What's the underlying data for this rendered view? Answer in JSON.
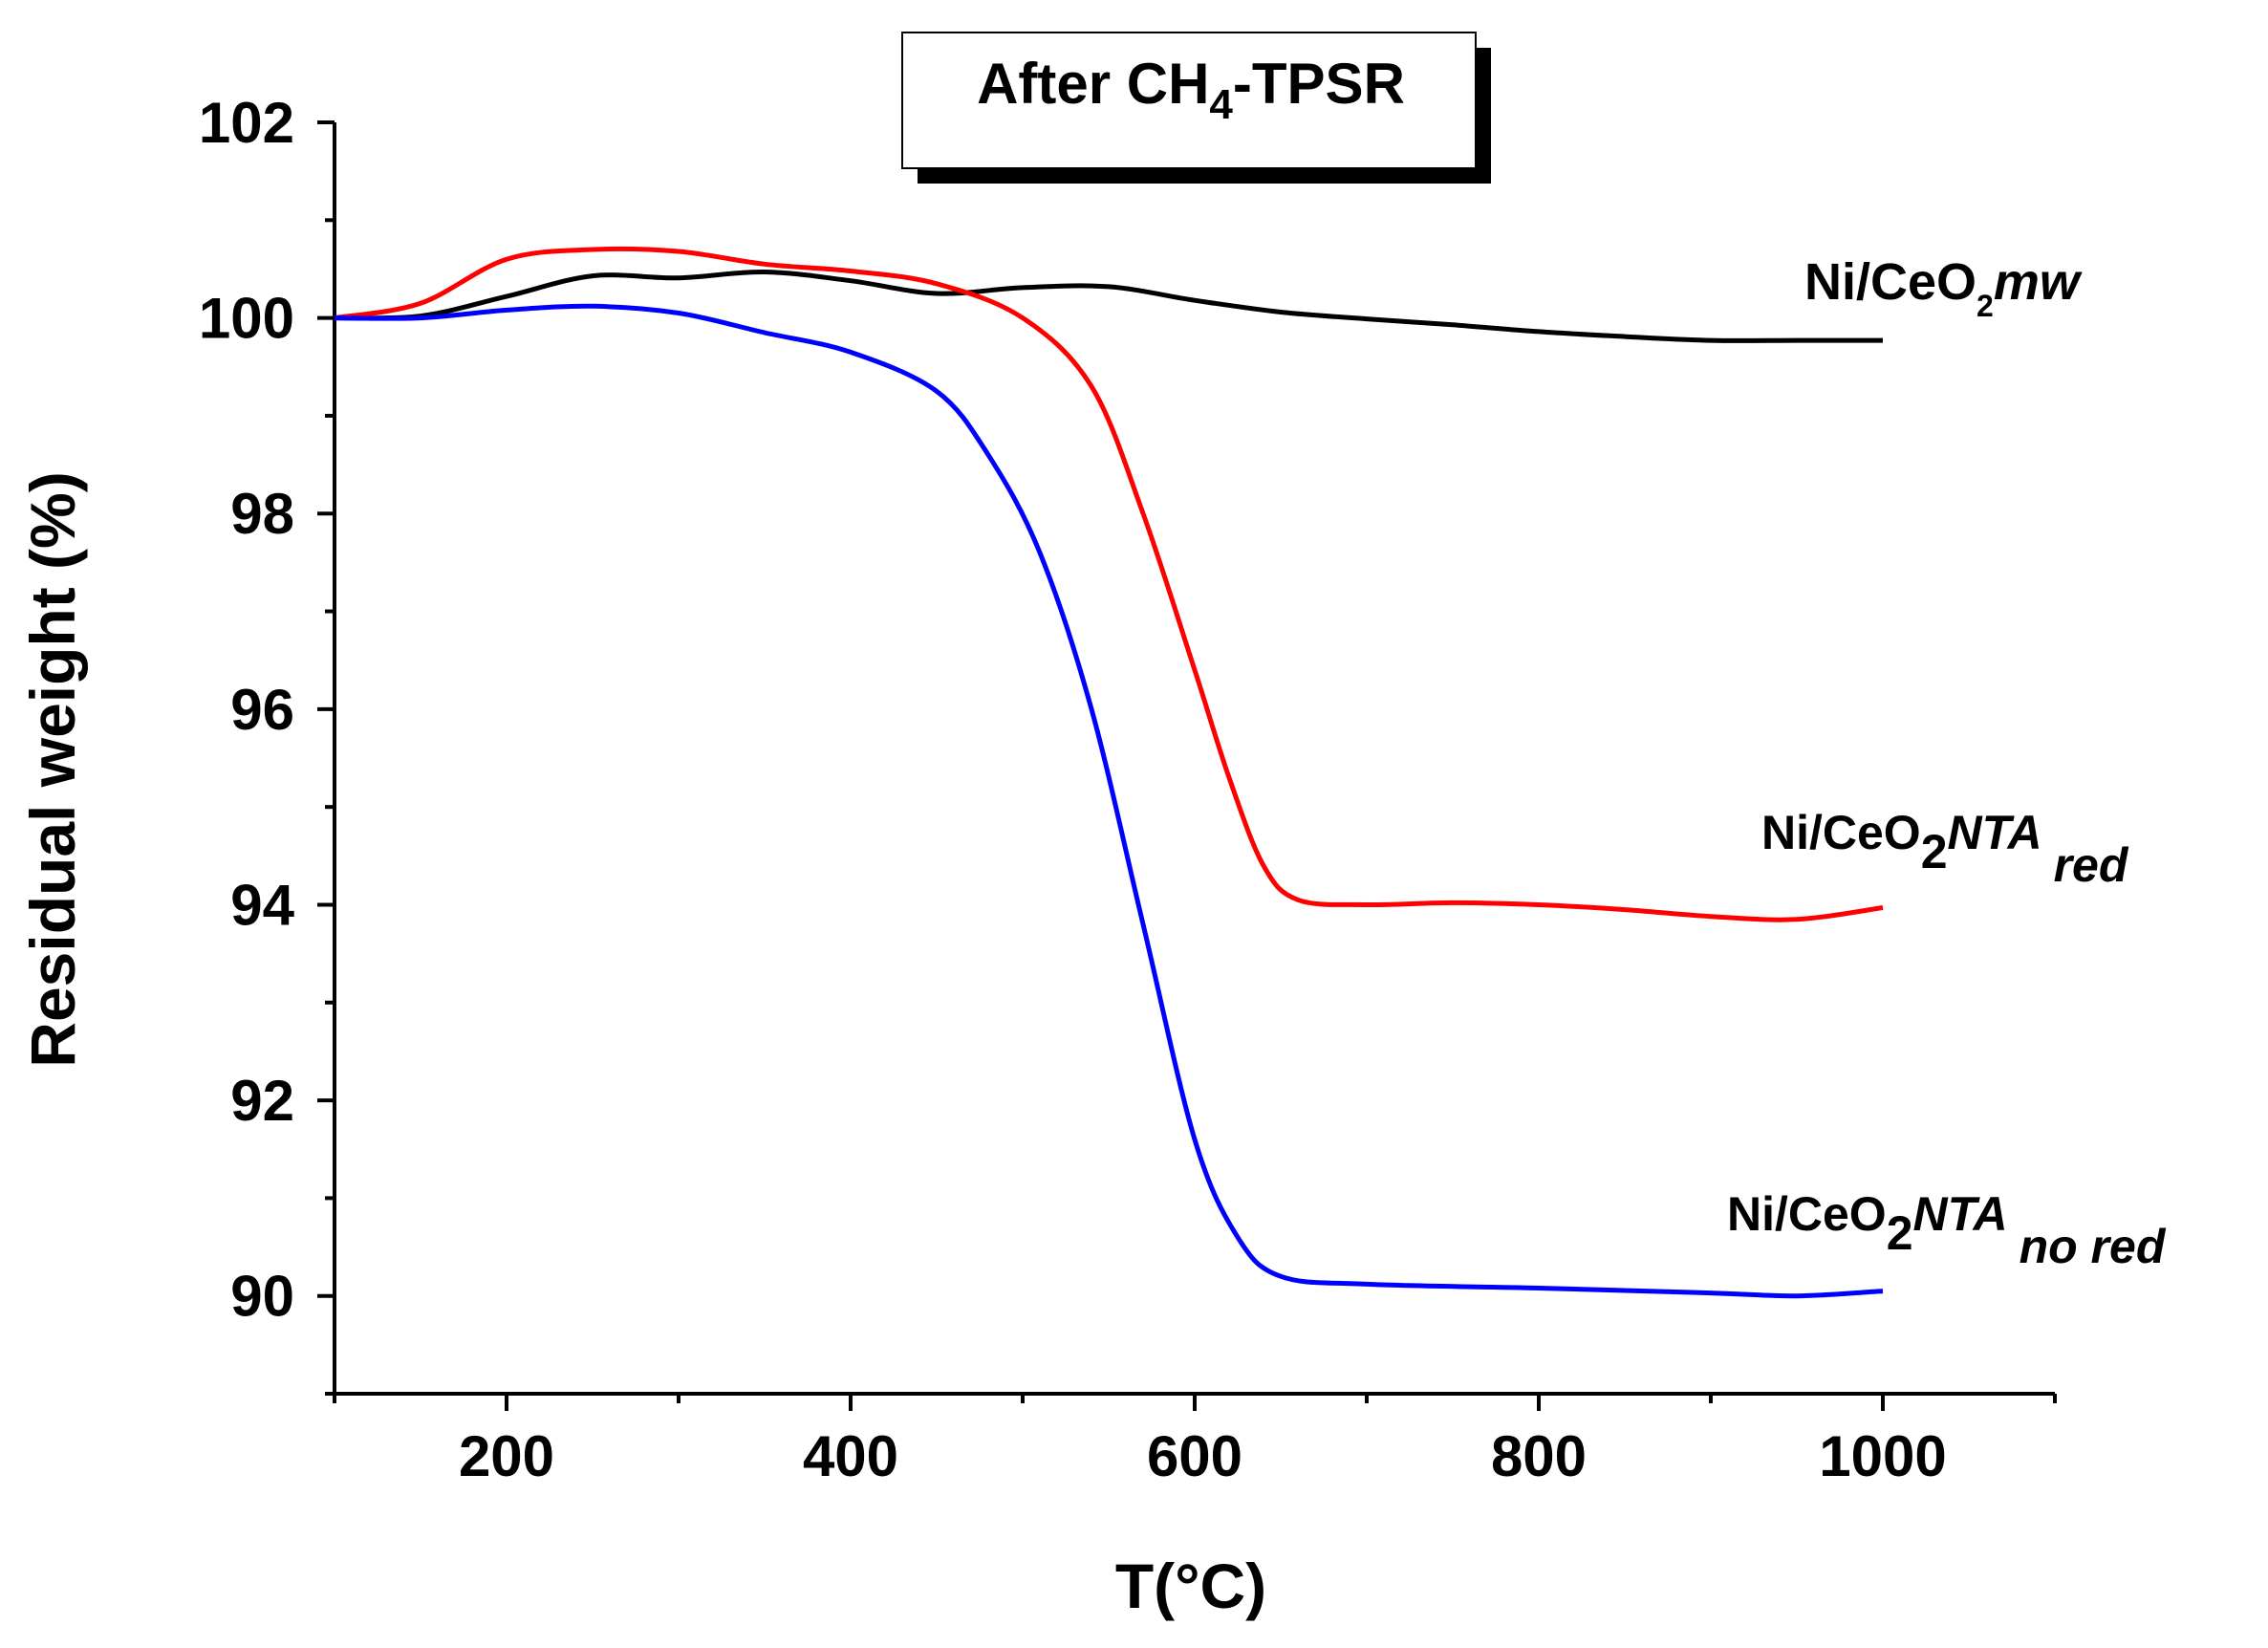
{
  "chart_data": {
    "type": "line",
    "title_main": "After CH",
    "title_sub": "4",
    "title_rest": "-TPSR",
    "xlabel": "T(°C)",
    "ylabel": "Residual weight (%)",
    "xlim": [
      100,
      1100
    ],
    "ylim": [
      89,
      102
    ],
    "x_ticks": [
      200,
      400,
      600,
      800,
      1000
    ],
    "y_ticks": [
      90,
      92,
      94,
      96,
      98,
      100,
      102
    ],
    "series": [
      {
        "name": "Ni/CeO2mw",
        "color": "#000000",
        "label": {
          "base": "Ni/CeO",
          "sub": "2",
          "italic": "mw",
          "italic_sub": ""
        },
        "points": [
          [
            100,
            100.0
          ],
          [
            150,
            100.02
          ],
          [
            200,
            100.22
          ],
          [
            250,
            100.43
          ],
          [
            300,
            100.41
          ],
          [
            350,
            100.47
          ],
          [
            400,
            100.38
          ],
          [
            450,
            100.25
          ],
          [
            500,
            100.31
          ],
          [
            550,
            100.32
          ],
          [
            600,
            100.18
          ],
          [
            650,
            100.06
          ],
          [
            700,
            99.99
          ],
          [
            750,
            99.93
          ],
          [
            800,
            99.86
          ],
          [
            850,
            99.81
          ],
          [
            900,
            99.77
          ],
          [
            950,
            99.77
          ],
          [
            1000,
            99.77
          ]
        ]
      },
      {
        "name": "Ni/CeO2NTA red",
        "color": "#ff0000",
        "label": {
          "base": "Ni/CeO",
          "sub": "2",
          "italic": "NTA",
          "italic_sub": "red"
        },
        "points": [
          [
            100,
            100.0
          ],
          [
            150,
            100.15
          ],
          [
            200,
            100.6
          ],
          [
            250,
            100.7
          ],
          [
            300,
            100.68
          ],
          [
            350,
            100.55
          ],
          [
            400,
            100.48
          ],
          [
            450,
            100.35
          ],
          [
            500,
            100.0
          ],
          [
            540,
            99.3
          ],
          [
            570,
            98.0
          ],
          [
            600,
            96.4
          ],
          [
            620,
            95.3
          ],
          [
            640,
            94.4
          ],
          [
            660,
            94.05
          ],
          [
            700,
            94.0
          ],
          [
            750,
            94.02
          ],
          [
            800,
            94.0
          ],
          [
            850,
            93.95
          ],
          [
            900,
            93.88
          ],
          [
            950,
            93.85
          ],
          [
            1000,
            93.97
          ]
        ]
      },
      {
        "name": "Ni/CeO2NTA no red",
        "color": "#0000ff",
        "label": {
          "base": "Ni/CeO",
          "sub": "2",
          "italic": "NTA",
          "italic_sub": "no red"
        },
        "points": [
          [
            100,
            100.0
          ],
          [
            150,
            100.0
          ],
          [
            200,
            100.08
          ],
          [
            250,
            100.12
          ],
          [
            300,
            100.05
          ],
          [
            350,
            99.85
          ],
          [
            400,
            99.65
          ],
          [
            450,
            99.25
          ],
          [
            480,
            98.6
          ],
          [
            510,
            97.6
          ],
          [
            540,
            96.0
          ],
          [
            570,
            93.8
          ],
          [
            600,
            91.6
          ],
          [
            625,
            90.6
          ],
          [
            650,
            90.2
          ],
          [
            700,
            90.12
          ],
          [
            800,
            90.08
          ],
          [
            900,
            90.03
          ],
          [
            950,
            90.0
          ],
          [
            1000,
            90.05
          ]
        ]
      }
    ]
  }
}
